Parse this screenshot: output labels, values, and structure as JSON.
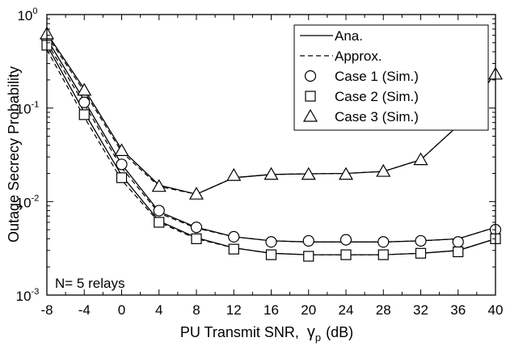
{
  "chart_data": {
    "type": "line",
    "title": "",
    "xlabel": "PU Transmit SNR,",
    "xlabel_symbol": "γ",
    "xlabel_subscript": "p",
    "xlabel_unit": "(dB)",
    "ylabel": "Outage Secrecy Probability",
    "xlim": [
      -8,
      40
    ],
    "ylim": [
      0.001,
      1
    ],
    "yscale": "log",
    "xticks": [
      -8,
      -4,
      0,
      4,
      8,
      12,
      16,
      20,
      24,
      28,
      32,
      36,
      40
    ],
    "xtick_labels": [
      "-8",
      "-4",
      "0",
      "4",
      "8",
      "12",
      "16",
      "20",
      "24",
      "28",
      "32",
      "36",
      "40"
    ],
    "yticks": [
      0.001,
      0.01,
      0.1,
      1
    ],
    "ytick_labels": [
      {
        "base": "10",
        "exp": "-3"
      },
      {
        "base": "10",
        "exp": "-2"
      },
      {
        "base": "10",
        "exp": "-1"
      },
      {
        "base": "10",
        "exp": "0"
      }
    ],
    "grid": false,
    "legend_position": "top-right",
    "legend": [
      {
        "label": "Ana.",
        "style": "solid-line"
      },
      {
        "label": "Approx.",
        "style": "dashed-line"
      },
      {
        "label": "Case 1 (Sim.)",
        "style": "circle"
      },
      {
        "label": "Case 2 (Sim.)",
        "style": "square"
      },
      {
        "label": "Case 3 (Sim.)",
        "style": "triangle"
      }
    ],
    "annotation": "N= 5 relays",
    "x": [
      -8,
      -4,
      0,
      4,
      8,
      12,
      16,
      20,
      24,
      28,
      32,
      36,
      40
    ],
    "series": [
      {
        "name": "Case 1 (Sim.)",
        "marker": "circle",
        "ana": [
          0.55,
          0.12,
          0.025,
          0.0078,
          0.0053,
          0.0042,
          0.0038,
          0.0037,
          0.0037,
          0.0037,
          0.0038,
          0.004,
          0.0053
        ],
        "approx": [
          0.5,
          0.11,
          0.023,
          0.0075,
          0.0052,
          0.0042,
          0.0038,
          0.0037,
          0.0037,
          0.0037,
          0.0038,
          0.004,
          0.0053
        ],
        "sim": [
          0.55,
          0.115,
          0.025,
          0.008,
          0.0053,
          0.0042,
          0.0037,
          0.0038,
          0.0039,
          0.0037,
          0.0038,
          0.0037,
          0.005
        ]
      },
      {
        "name": "Case 2 (Sim.)",
        "marker": "square",
        "ana": [
          0.47,
          0.09,
          0.019,
          0.0062,
          0.0041,
          0.0032,
          0.0028,
          0.0027,
          0.0027,
          0.0027,
          0.0028,
          0.003,
          0.004
        ],
        "approx": [
          0.42,
          0.08,
          0.017,
          0.006,
          0.004,
          0.0032,
          0.0028,
          0.0027,
          0.0027,
          0.0027,
          0.0028,
          0.003,
          0.004
        ],
        "sim": [
          0.47,
          0.085,
          0.018,
          0.006,
          0.004,
          0.0031,
          0.0027,
          0.0026,
          0.0027,
          0.0027,
          0.0028,
          0.0029,
          0.004
        ]
      },
      {
        "name": "Case 3 (Sim.)",
        "marker": "triangle",
        "ana": [
          0.63,
          0.16,
          0.036,
          0.015,
          0.012,
          0.018,
          0.0195,
          0.0198,
          0.02,
          0.021,
          0.028,
          0.065,
          0.24
        ],
        "approx": [
          0.6,
          0.15,
          0.034,
          0.0145,
          0.012,
          0.018,
          0.0195,
          0.0198,
          0.02,
          0.021,
          0.028,
          0.065,
          0.24
        ],
        "sim": [
          0.62,
          0.155,
          0.035,
          0.0145,
          0.012,
          0.019,
          0.0195,
          0.0195,
          0.0195,
          0.021,
          0.028,
          0.066,
          0.23
        ]
      }
    ]
  }
}
